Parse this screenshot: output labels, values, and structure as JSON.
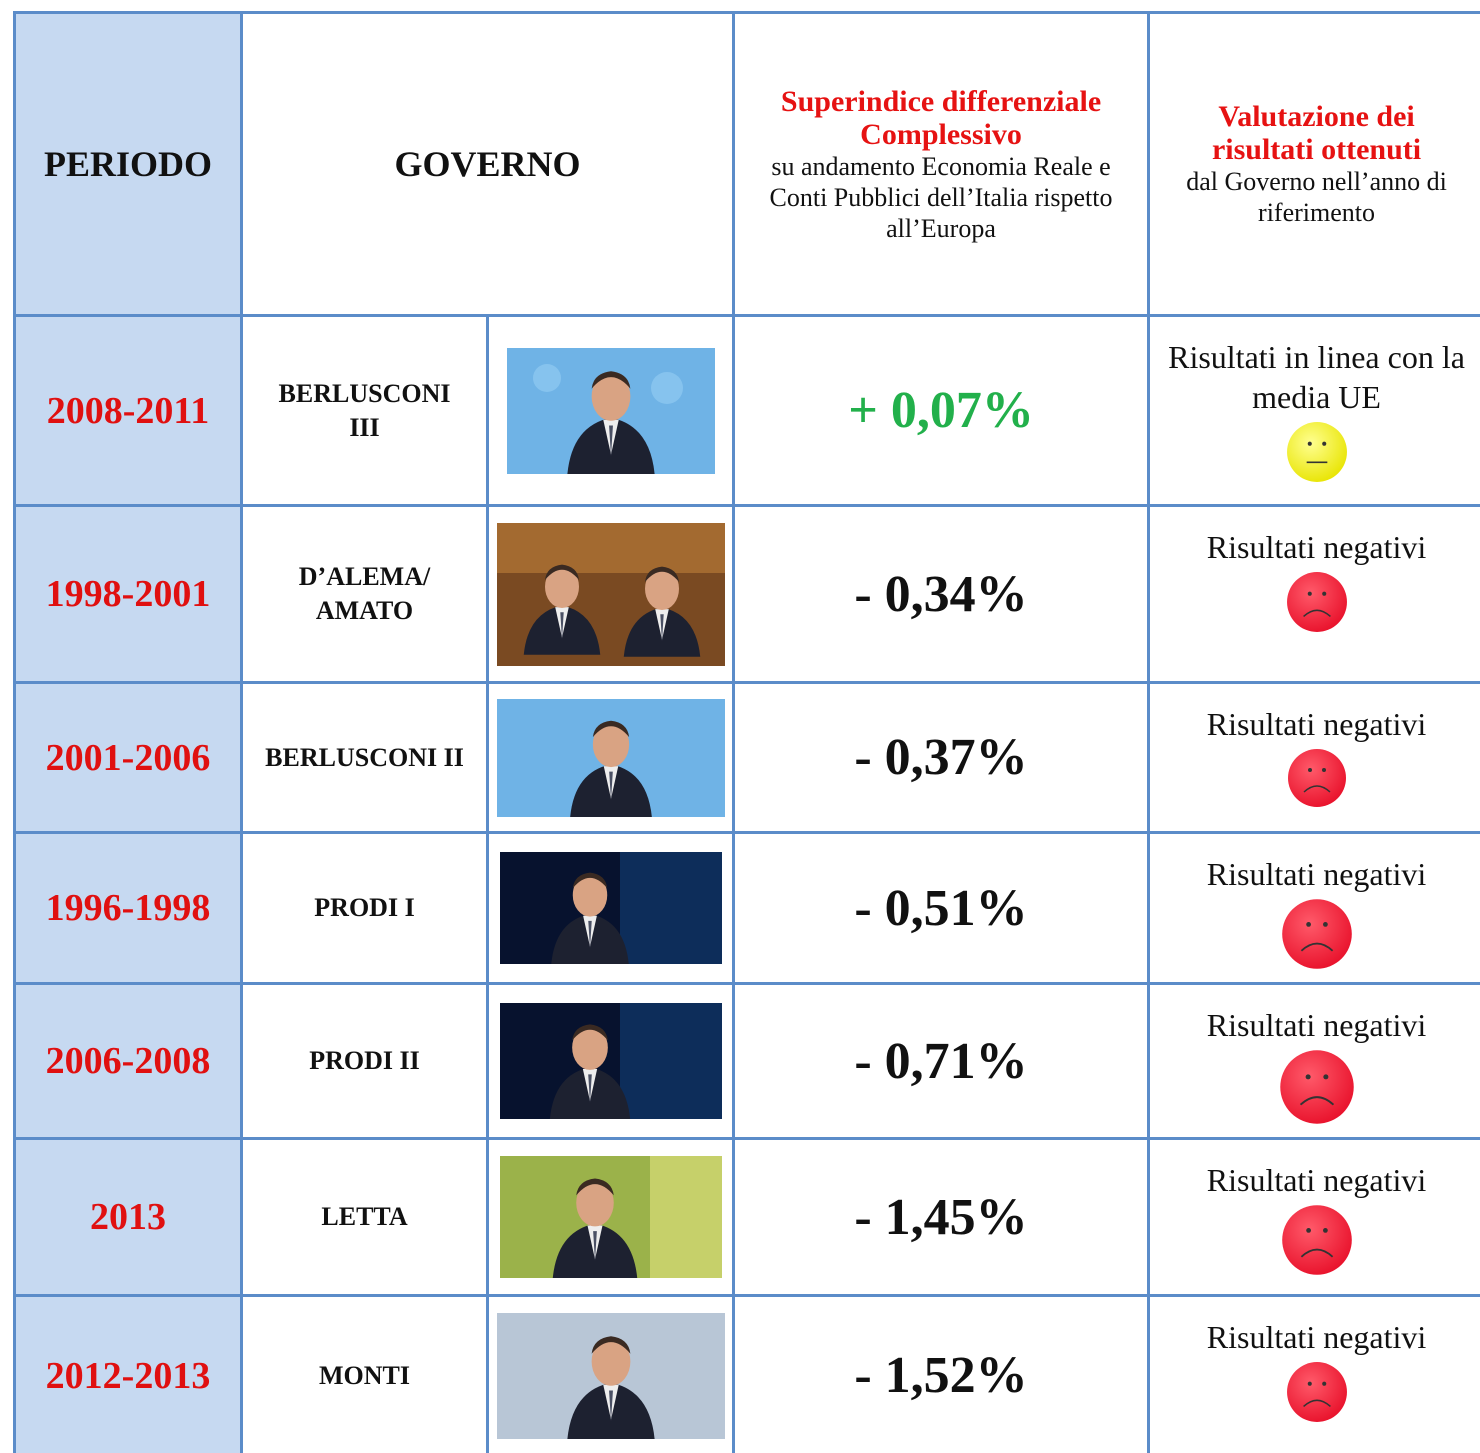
{
  "header": {
    "period": "PERIODO",
    "government": "GOVERNO",
    "index_title": "Superindice differenziale Complessivo",
    "index_subtitle": "su andamento Economia Reale e Conti Pubblici dell’Italia rispetto all’Europa",
    "evaluation_title": "Valutazione dei risultati ottenuti",
    "evaluation_subtitle": "dal Governo nell’anno di riferimento"
  },
  "rows": [
    {
      "period": "2008-2011",
      "government": "BERLUSCONI III",
      "index": "+ 0,07%",
      "evaluation": "Risultati in linea con la media UE"
    },
    {
      "period": "1998-2001",
      "government": "D’ALEMA/ AMATO",
      "index": "- 0,34%",
      "evaluation": "Risultati negativi"
    },
    {
      "period": "2001-2006",
      "government": "BERLUSCONI II",
      "index": "- 0,37%",
      "evaluation": "Risultati negativi"
    },
    {
      "period": "1996-1998",
      "government": "PRODI I",
      "index": "- 0,51%",
      "evaluation": "Risultati negativi"
    },
    {
      "period": "2006-2008",
      "government": "PRODI II",
      "index": "- 0,71%",
      "evaluation": "Risultati negativi"
    },
    {
      "period": "2013",
      "government": "LETTA",
      "index": "- 1,45%",
      "evaluation": "Risultati negativi"
    },
    {
      "period": "2012-2013",
      "government": "MONTI",
      "index": "- 1,52%",
      "evaluation": "Risultati negativi"
    }
  ]
}
